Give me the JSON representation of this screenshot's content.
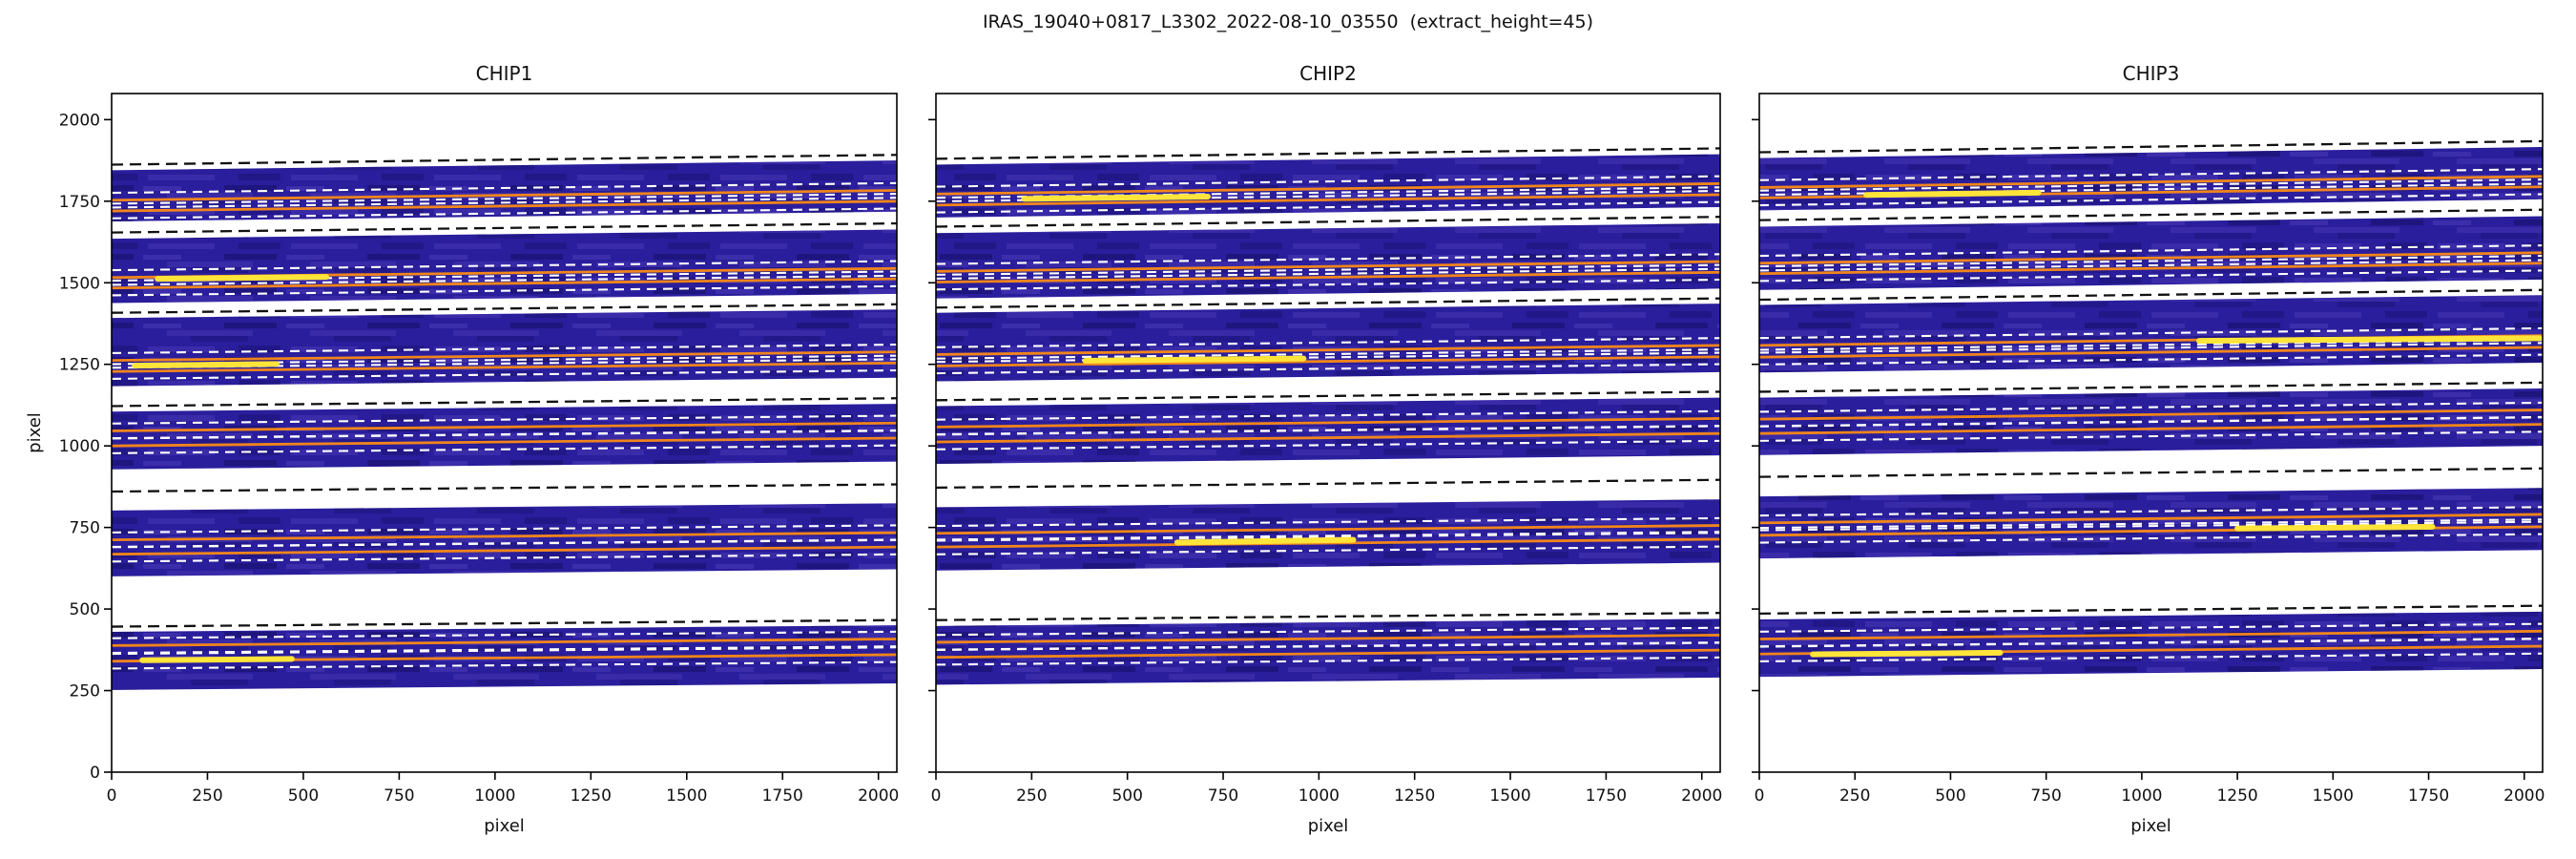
{
  "figure": {
    "suptitle": "IRAS_19040+0817_L3302_2022-08-10_03550  (extract_height=45)"
  },
  "chart_data": [
    {
      "type": "heatmap",
      "title": "CHIP1",
      "xlabel": "pixel",
      "ylabel": "pixel",
      "xlim": [
        0,
        2048
      ],
      "ylim": [
        0,
        2080
      ],
      "xticks": [
        0,
        250,
        500,
        750,
        1000,
        1250,
        1500,
        1750,
        2000
      ],
      "yticks": [
        0,
        250,
        500,
        750,
        1000,
        1250,
        1500,
        1750,
        2000
      ],
      "show_ytick_labels": true,
      "show_ylabel": true,
      "extract_height": 45,
      "colors": {
        "band": "#2a1e9c",
        "trace": "#f0851c",
        "highlight": "#ffe43a",
        "aperture": "#ffffff",
        "edge": "#111111"
      },
      "orders": [
        {
          "band": [
            252,
            430
          ],
          "rise": 20,
          "traces": [
            340,
            388
          ],
          "edge": 446
        },
        {
          "band": [
            600,
            802
          ],
          "rise": 22,
          "traces": [
            668,
            712
          ],
          "edge": 860
        },
        {
          "band": [
            928,
            1105
          ],
          "rise": 24,
          "traces": [
            1000,
            1046
          ],
          "edge": 1122
        },
        {
          "band": [
            1183,
            1392
          ],
          "rise": 26,
          "traces": [
            1228,
            1262
          ],
          "edge": 1408
        },
        {
          "band": [
            1438,
            1635
          ],
          "rise": 28,
          "traces": [
            1484,
            1516
          ],
          "edge": 1654
        },
        {
          "band": [
            1688,
            1845
          ],
          "rise": 30,
          "traces": [
            1720,
            1753
          ],
          "edge": 1862
        }
      ],
      "highlights": [
        {
          "x0": 60,
          "x1": 430,
          "y0": 1246,
          "y1": 1251
        },
        {
          "x0": 120,
          "x1": 560,
          "y0": 1512,
          "y1": 1518
        },
        {
          "x0": 80,
          "x1": 470,
          "y0": 343,
          "y1": 347
        }
      ]
    },
    {
      "type": "heatmap",
      "title": "CHIP2",
      "xlabel": "pixel",
      "ylabel": "pixel",
      "xlim": [
        0,
        2048
      ],
      "ylim": [
        0,
        2080
      ],
      "xticks": [
        0,
        250,
        500,
        750,
        1000,
        1250,
        1500,
        1750,
        2000
      ],
      "yticks": [
        0,
        250,
        500,
        750,
        1000,
        1250,
        1500,
        1750,
        2000
      ],
      "show_ytick_labels": false,
      "show_ylabel": false,
      "extract_height": 45,
      "colors": {
        "band": "#2a1e9c",
        "trace": "#f0851c",
        "highlight": "#ffe43a",
        "aperture": "#ffffff",
        "edge": "#111111"
      },
      "orders": [
        {
          "band": [
            268,
            448
          ],
          "rise": 22,
          "traces": [
            352,
            398
          ],
          "edge": 466
        },
        {
          "band": [
            618,
            812
          ],
          "rise": 24,
          "traces": [
            690,
            732
          ],
          "edge": 872
        },
        {
          "band": [
            945,
            1122
          ],
          "rise": 26,
          "traces": [
            1012,
            1058
          ],
          "edge": 1140
        },
        {
          "band": [
            1198,
            1408
          ],
          "rise": 28,
          "traces": [
            1245,
            1280
          ],
          "edge": 1424
        },
        {
          "band": [
            1452,
            1652
          ],
          "rise": 30,
          "traces": [
            1502,
            1535
          ],
          "edge": 1672
        },
        {
          "band": [
            1700,
            1862
          ],
          "rise": 32,
          "traces": [
            1738,
            1772
          ],
          "edge": 1880
        }
      ],
      "highlights": [
        {
          "x0": 630,
          "x1": 1090,
          "y0": 704,
          "y1": 712
        },
        {
          "x0": 390,
          "x1": 960,
          "y0": 1261,
          "y1": 1268
        },
        {
          "x0": 230,
          "x1": 710,
          "y0": 1757,
          "y1": 1764
        }
      ]
    },
    {
      "type": "heatmap",
      "title": "CHIP3",
      "xlabel": "pixel",
      "ylabel": "pixel",
      "xlim": [
        0,
        2048
      ],
      "ylim": [
        0,
        2080
      ],
      "xticks": [
        0,
        250,
        500,
        750,
        1000,
        1250,
        1500,
        1750,
        2000
      ],
      "yticks": [
        0,
        250,
        500,
        750,
        1000,
        1250,
        1500,
        1750,
        2000
      ],
      "show_ytick_labels": false,
      "show_ylabel": false,
      "extract_height": 45,
      "colors": {
        "band": "#2a1e9c",
        "trace": "#f0851c",
        "highlight": "#ffe43a",
        "aperture": "#ffffff",
        "edge": "#111111"
      },
      "orders": [
        {
          "band": [
            292,
            468
          ],
          "rise": 24,
          "traces": [
            362,
            408
          ],
          "edge": 486
        },
        {
          "band": [
            655,
            845
          ],
          "rise": 26,
          "traces": [
            726,
            764
          ],
          "edge": 905
        },
        {
          "band": [
            972,
            1148
          ],
          "rise": 28,
          "traces": [
            1038,
            1082
          ],
          "edge": 1166
        },
        {
          "band": [
            1225,
            1432
          ],
          "rise": 30,
          "traces": [
            1272,
            1308
          ],
          "edge": 1448
        },
        {
          "band": [
            1478,
            1672
          ],
          "rise": 32,
          "traces": [
            1528,
            1560
          ],
          "edge": 1692
        },
        {
          "band": [
            1722,
            1882
          ],
          "rise": 34,
          "traces": [
            1760,
            1792
          ],
          "edge": 1900
        }
      ],
      "highlights": [
        {
          "x0": 280,
          "x1": 730,
          "y0": 1769,
          "y1": 1776
        },
        {
          "x0": 1150,
          "x1": 2040,
          "y0": 1322,
          "y1": 1330
        },
        {
          "x0": 140,
          "x1": 630,
          "y0": 361,
          "y1": 366
        },
        {
          "x0": 1250,
          "x1": 1760,
          "y0": 747,
          "y1": 752
        }
      ]
    }
  ]
}
